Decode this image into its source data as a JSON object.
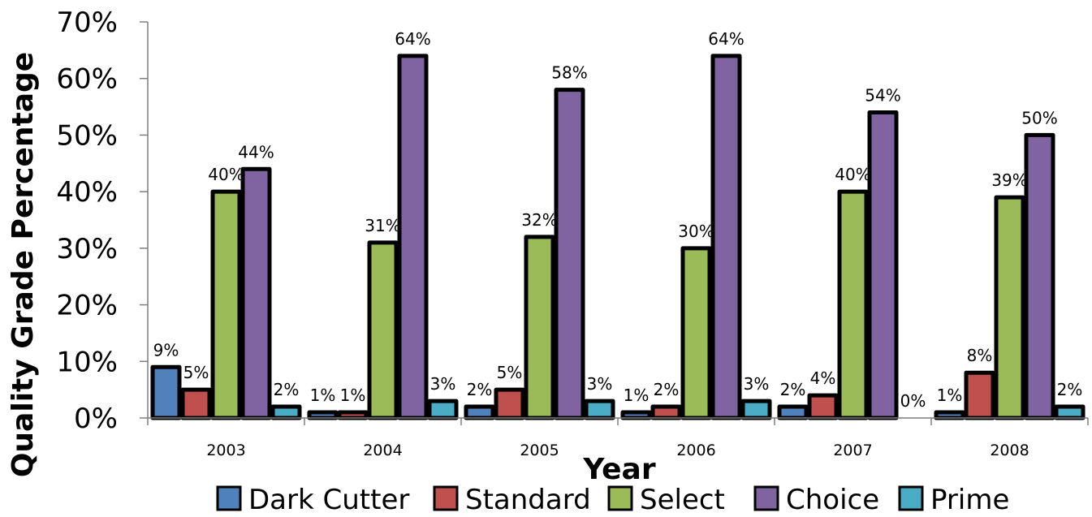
{
  "chart_data": {
    "type": "bar",
    "categories": [
      "2003",
      "2004",
      "2005",
      "2006",
      "2007",
      "2008"
    ],
    "series": [
      {
        "name": "Dark Cutter",
        "color": "#4F81BD",
        "values": [
          9,
          1,
          2,
          1,
          2,
          1
        ],
        "labels": [
          "9%",
          "1%",
          "2%",
          "1%",
          "2%",
          "1%"
        ]
      },
      {
        "name": "Standard",
        "color": "#C0504D",
        "values": [
          5,
          1,
          5,
          2,
          4,
          8
        ],
        "labels": [
          "5%",
          "1%",
          "5%",
          "2%",
          "4%",
          "8%"
        ]
      },
      {
        "name": "Select",
        "color": "#9BBB59",
        "values": [
          40,
          31,
          32,
          30,
          40,
          39
        ],
        "labels": [
          "40%",
          "31%",
          "32%",
          "30%",
          "40%",
          "39%"
        ]
      },
      {
        "name": "Choice",
        "color": "#8064A2",
        "values": [
          44,
          64,
          58,
          64,
          54,
          50
        ],
        "labels": [
          "44%",
          "64%",
          "58%",
          "64%",
          "54%",
          "50%"
        ]
      },
      {
        "name": "Prime",
        "color": "#4BACC6",
        "values": [
          2,
          3,
          3,
          3,
          0,
          2
        ],
        "labels": [
          "2%",
          "3%",
          "3%",
          "3%",
          "0%",
          "2%"
        ]
      }
    ],
    "xlabel": "Year",
    "ylabel": "Quality Grade Percentage",
    "ylim": [
      0,
      70
    ],
    "yticks": [
      "0%",
      "10%",
      "20%",
      "30%",
      "40%",
      "50%",
      "60%",
      "70%"
    ],
    "grid": false,
    "legend": "bottom"
  }
}
